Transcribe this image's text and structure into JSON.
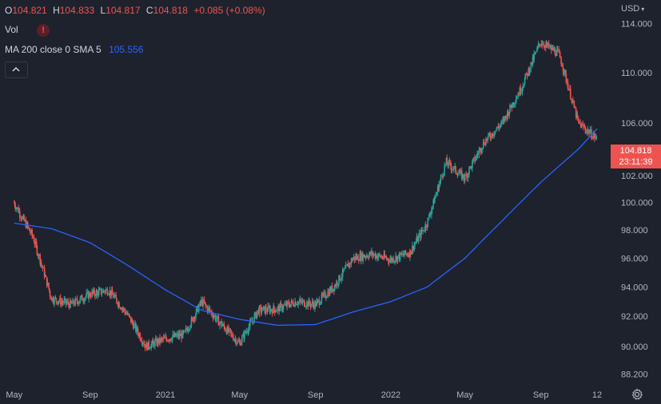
{
  "ohlc": {
    "open_key": "O",
    "open": "104.821",
    "high_key": "H",
    "high": "104.833",
    "low_key": "L",
    "low": "104.817",
    "close_key": "C",
    "close": "104.818",
    "change": "+0.085 (+0.08%)"
  },
  "volume": {
    "label": "Vol",
    "alert_icon": "exclamation-icon",
    "alert_text": "!"
  },
  "indicator": {
    "label": "MA 200 close 0 SMA 5",
    "value": "105.556"
  },
  "price_axis": {
    "currency": "USD"
  },
  "last_price": {
    "price": "104.818",
    "countdown": "23:11:39"
  },
  "colors": {
    "up": "#26a69a",
    "down": "#ef5350",
    "ma": "#2962ff",
    "background": "#1e222d",
    "badge": "#ef5350"
  },
  "chart_data": {
    "type": "candlestick",
    "y_ticks": [
      "114.000",
      "110.000",
      "106.000",
      "102.000",
      "100.000",
      "98.000",
      "96.000",
      "94.000",
      "92.000",
      "90.000",
      "88.200"
    ],
    "x_ticks": [
      "May",
      "Sep",
      "2021",
      "May",
      "Sep",
      "2022",
      "May",
      "Sep",
      "12"
    ],
    "scale": "log",
    "ylim": [
      87.6,
      116
    ],
    "grid": false,
    "series": [
      {
        "name": "price",
        "x": [
          "2020-05-01",
          "2020-06-01",
          "2020-07-01",
          "2020-08-01",
          "2020-09-01",
          "2020-10-01",
          "2020-11-01",
          "2020-12-01",
          "2021-01-01",
          "2021-02-01",
          "2021-03-01",
          "2021-04-01",
          "2021-05-01",
          "2021-06-01",
          "2021-07-01",
          "2021-08-01",
          "2021-09-01",
          "2021-10-01",
          "2021-11-01",
          "2021-12-01",
          "2022-01-01",
          "2022-02-01",
          "2022-03-01",
          "2022-04-01",
          "2022-05-01",
          "2022-06-01",
          "2022-07-01",
          "2022-08-01",
          "2022-09-01",
          "2022-10-01",
          "2022-11-01",
          "2022-12-01"
        ],
        "values": [
          100.0,
          97.5,
          93.2,
          92.8,
          93.5,
          93.8,
          92.1,
          90.0,
          90.5,
          90.8,
          93.0,
          91.5,
          90.2,
          92.4,
          92.5,
          93.0,
          92.8,
          94.0,
          96.0,
          96.3,
          95.9,
          96.4,
          98.5,
          103.0,
          101.8,
          104.5,
          106.0,
          108.8,
          112.5,
          111.5,
          106.0,
          104.8
        ]
      },
      {
        "name": "MA 200 close 0 SMA 5",
        "x": [
          "2020-05-01",
          "2020-07-01",
          "2020-09-01",
          "2020-11-01",
          "2021-01-01",
          "2021-03-01",
          "2021-05-01",
          "2021-07-01",
          "2021-09-01",
          "2021-11-01",
          "2022-01-01",
          "2022-03-01",
          "2022-05-01",
          "2022-07-01",
          "2022-09-01",
          "2022-11-01",
          "2022-12-01"
        ],
        "values": [
          98.5,
          98.1,
          97.1,
          95.5,
          93.8,
          92.4,
          91.8,
          91.4,
          91.45,
          92.3,
          93.0,
          94.0,
          96.0,
          98.7,
          101.5,
          104.0,
          105.556
        ]
      }
    ]
  }
}
